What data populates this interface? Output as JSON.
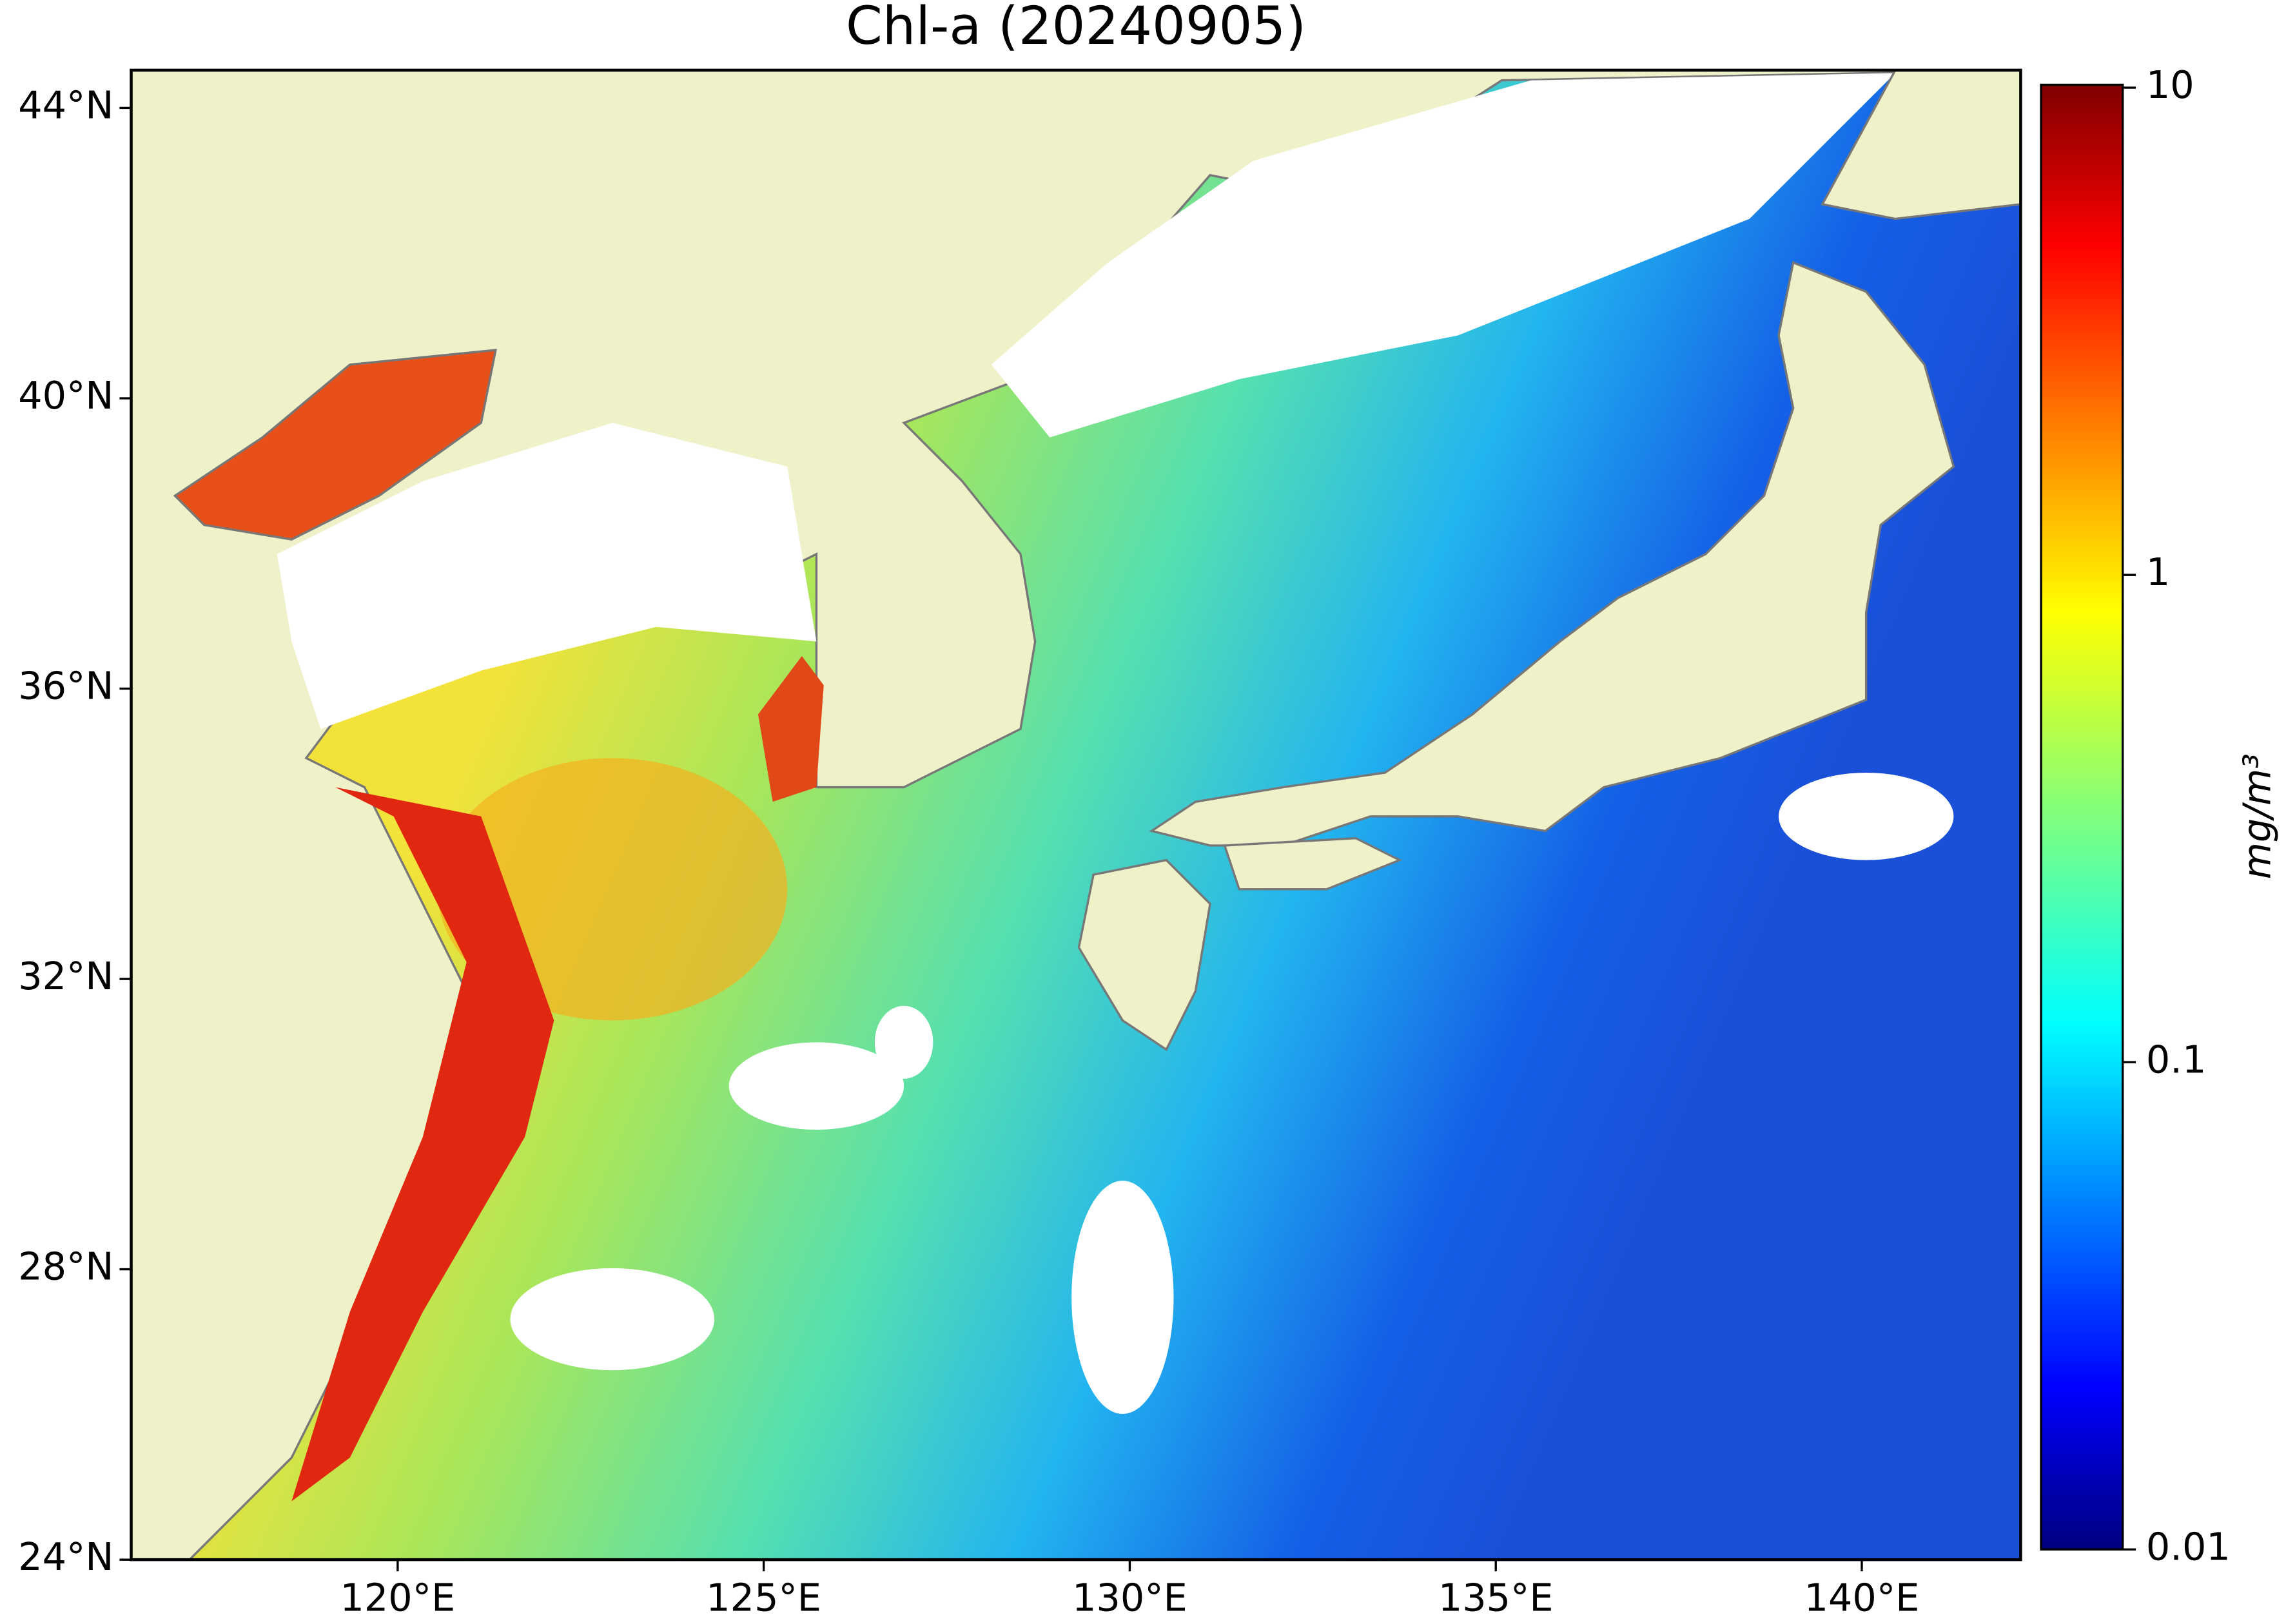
{
  "chart_data": {
    "type": "map",
    "title": "Chl-a (20240905)",
    "xlim": [
      116.36,
      142.17
    ],
    "xticks": [
      {
        "value": 120,
        "label": "120°E"
      },
      {
        "value": 125,
        "label": "125°E"
      },
      {
        "value": 130,
        "label": "130°E"
      },
      {
        "value": 135,
        "label": "135°E"
      },
      {
        "value": 140,
        "label": "140°E"
      }
    ],
    "ylim": [
      24,
      44.52
    ],
    "yticks": [
      {
        "value": 24,
        "label": "24°N"
      },
      {
        "value": 28,
        "label": "28°N"
      },
      {
        "value": 32,
        "label": "32°N"
      },
      {
        "value": 36,
        "label": "36°N"
      },
      {
        "value": 40,
        "label": "40°N"
      },
      {
        "value": 44,
        "label": "44°N"
      }
    ],
    "colorbar": {
      "label": "mg/m³",
      "lim": [
        0.01,
        10
      ],
      "log": true,
      "ticks": [
        0.01,
        0.1,
        1,
        10
      ],
      "colormap": "jet"
    }
  }
}
